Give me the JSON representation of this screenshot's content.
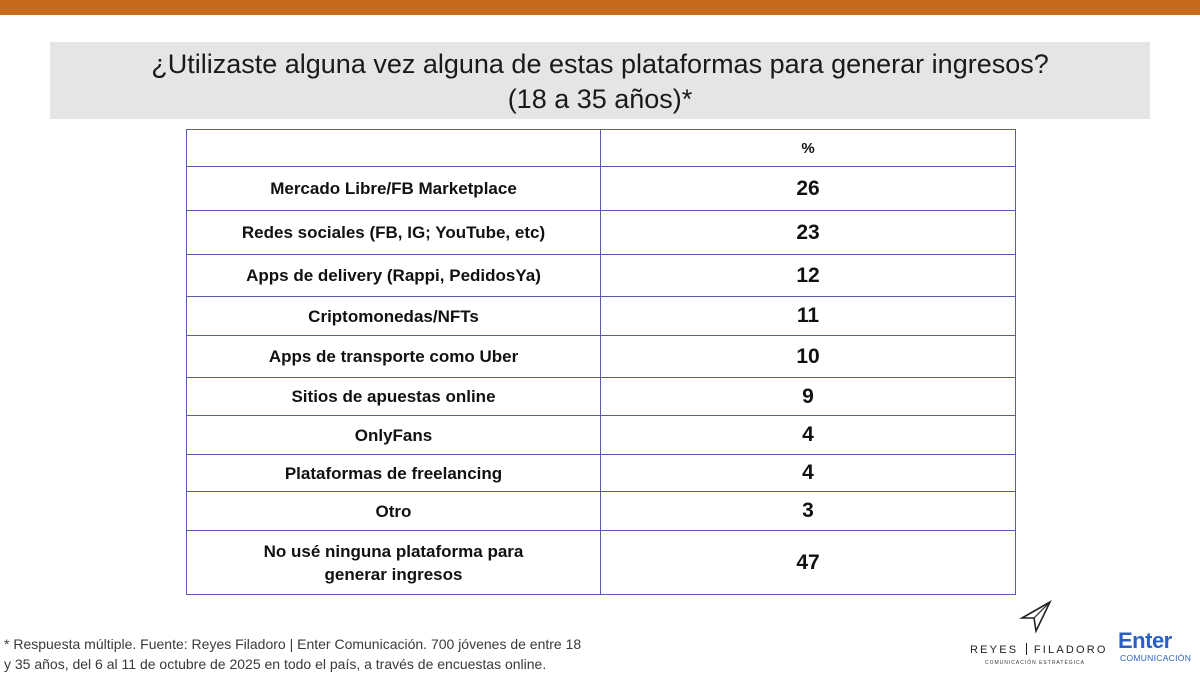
{
  "colors": {
    "accent_bar": "#c8691c",
    "title_bg": "#e5e5e5",
    "table_border": "#5a5ab0",
    "brand_blue": "#2a5fc4"
  },
  "title": {
    "line1": "¿Utilizaste alguna vez alguna de estas plataformas para generar ingresos?",
    "line2": "(18 a 35 años)*"
  },
  "table": {
    "header": {
      "label": "",
      "value": "%"
    },
    "rows": [
      {
        "label": "Mercado Libre/FB Marketplace",
        "value": "26"
      },
      {
        "label": "Redes sociales (FB, IG; YouTube, etc)",
        "value": "23"
      },
      {
        "label": "Apps de delivery (Rappi, PedidosYa)",
        "value": "12"
      },
      {
        "label": "Criptomonedas/NFTs",
        "value": "11"
      },
      {
        "label": "Apps de transporte como Uber",
        "value": "10"
      },
      {
        "label": "Sitios de apuestas online",
        "value": "9"
      },
      {
        "label": "OnlyFans",
        "value": "4"
      },
      {
        "label": "Plataformas de freelancing",
        "value": "4"
      },
      {
        "label": "Otro",
        "value": "3"
      },
      {
        "label_line1": "No usé ninguna plataforma para",
        "label_line2": "generar ingresos",
        "value": "47"
      }
    ]
  },
  "footnote": {
    "line1": "* Respuesta múltiple. Fuente: Reyes Filadoro | Enter Comunicación. 700 jóvenes de entre 18",
    "line2": "y 35 años, del 6 al 11 de octubre de 2025 en todo el país, a través de encuestas online."
  },
  "logos": {
    "reyes_filadoro": {
      "name_left": "REYES",
      "name_right": "FILADORO",
      "tagline": "COMUNICACIÓN ESTRATÉGICA",
      "icon": "paper-plane-icon"
    },
    "enter": {
      "word": "Enter",
      "sub": "COMUNICACIÓN"
    }
  }
}
